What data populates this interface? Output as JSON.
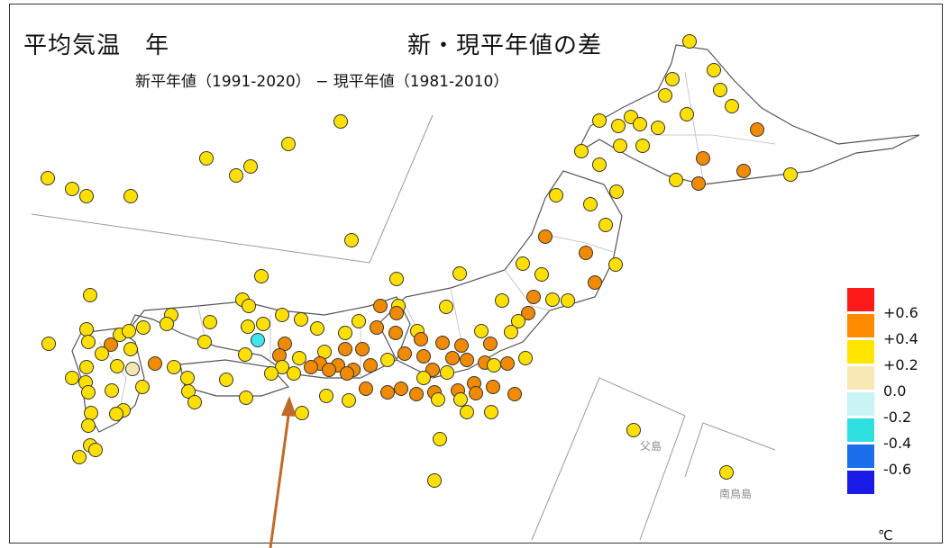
{
  "title": {
    "main": "平均気温　年",
    "right": "新・現平年値の差",
    "sub": "新平年値（1991-2020） − 現平年値（1981-2010）"
  },
  "labels": {
    "chichijima": "父島",
    "minamitorishima": "南鳥島"
  },
  "legend": {
    "unit": "℃",
    "items": [
      {
        "label": "+0.6",
        "color": "#ff1a1a"
      },
      {
        "label": "+0.4",
        "color": "#ff8c00"
      },
      {
        "label": "+0.2",
        "color": "#ffe600"
      },
      {
        "label": "0.0",
        "color": "#f7e8b4"
      },
      {
        "label": "-0.2",
        "color": "#c8f4f4"
      },
      {
        "label": "-0.4",
        "color": "#30e0e0"
      },
      {
        "label": "-0.6",
        "color": "#1a6eea"
      },
      {
        "label": "",
        "color": "#1a1ae6"
      }
    ]
  },
  "colors": {
    "yellow": "#fde000",
    "orange": "#f08a00",
    "pale": "#f4e6b4",
    "cyan": "#40e6ee",
    "arrow": "#c06a28"
  }
}
